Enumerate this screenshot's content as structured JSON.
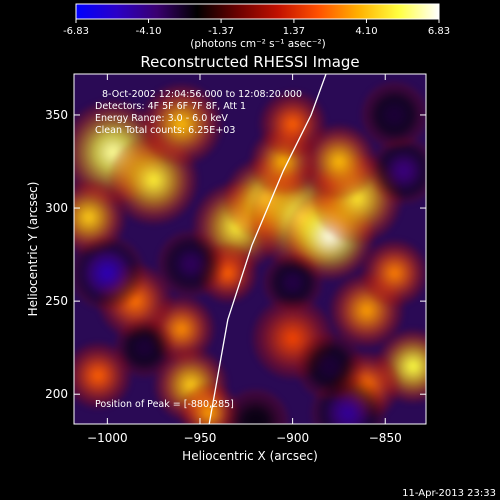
{
  "colorbar": {
    "ticks": [
      "-6.83",
      "-4.10",
      "-1.37",
      "1.37",
      "4.10",
      "6.83"
    ],
    "tick_values": [
      -6.83,
      -4.1,
      -1.37,
      1.37,
      4.1,
      6.83
    ],
    "unit_label": "(photons cm⁻² s⁻¹ asec⁻²)",
    "stops": [
      "#0000ff",
      "#2a00c8",
      "#3a0070",
      "#000000",
      "#6a0000",
      "#c01000",
      "#ff5000",
      "#ffb000",
      "#ffff40",
      "#ffffff"
    ]
  },
  "chart_data": {
    "type": "heatmap",
    "title": "Reconstructed RHESSI Image",
    "xlabel": "Heliocentric X (arcsec)",
    "ylabel": "Heliocentric Y (arcsec)",
    "xlim": [
      -1018,
      -828
    ],
    "ylim": [
      184,
      372
    ],
    "xticks": [
      -1000,
      -950,
      -900,
      -850
    ],
    "yticks": [
      200,
      250,
      300,
      350
    ],
    "xtick_labels": [
      "−1000",
      "−950",
      "−900",
      "−850"
    ],
    "ytick_labels": [
      "200",
      "250",
      "300",
      "350"
    ],
    "annotations": [
      "8-Oct-2002 12:04:56.000 to 12:08:20.000",
      "Detectors: 4F 5F 6F 7F 8F, Att 1",
      "Energy Range: 3.0 - 6.0 keV",
      "Clean     Total counts: 6.25E+03"
    ],
    "pos_label": "Position of Peak = [-880,285]",
    "limb_points": [
      [
        -945,
        184
      ],
      [
        -935,
        240
      ],
      [
        -922,
        280
      ],
      [
        -905,
        320
      ],
      [
        -890,
        350
      ],
      [
        -882,
        372
      ]
    ],
    "sources": [
      {
        "x": -997,
        "y": 330,
        "v": 6.0,
        "s": 14
      },
      {
        "x": -975,
        "y": 315,
        "v": 5.0,
        "s": 12
      },
      {
        "x": -960,
        "y": 345,
        "v": 4.0,
        "s": 11
      },
      {
        "x": -1010,
        "y": 295,
        "v": 4.3,
        "s": 10
      },
      {
        "x": -930,
        "y": 290,
        "v": 5.0,
        "s": 12
      },
      {
        "x": -915,
        "y": 305,
        "v": 5.0,
        "s": 11
      },
      {
        "x": -895,
        "y": 295,
        "v": 5.5,
        "s": 14
      },
      {
        "x": -880,
        "y": 285,
        "v": 6.6,
        "s": 12
      },
      {
        "x": -865,
        "y": 305,
        "v": 4.8,
        "s": 12
      },
      {
        "x": -875,
        "y": 325,
        "v": 4.0,
        "s": 10
      },
      {
        "x": -905,
        "y": 325,
        "v": 3.8,
        "s": 9
      },
      {
        "x": -900,
        "y": 345,
        "v": 2.5,
        "s": 9
      },
      {
        "x": -960,
        "y": 235,
        "v": 3.2,
        "s": 9
      },
      {
        "x": -985,
        "y": 250,
        "v": 2.8,
        "s": 10
      },
      {
        "x": -955,
        "y": 205,
        "v": 4.3,
        "s": 10
      },
      {
        "x": -945,
        "y": 190,
        "v": 3.5,
        "s": 8
      },
      {
        "x": -1005,
        "y": 210,
        "v": 2.5,
        "s": 9
      },
      {
        "x": -935,
        "y": 265,
        "v": 2.5,
        "s": 8
      },
      {
        "x": -860,
        "y": 245,
        "v": 3.5,
        "s": 10
      },
      {
        "x": -845,
        "y": 265,
        "v": 3.0,
        "s": 9
      },
      {
        "x": -835,
        "y": 215,
        "v": 5.3,
        "s": 10
      },
      {
        "x": -860,
        "y": 205,
        "v": 2.8,
        "s": 9
      },
      {
        "x": -900,
        "y": 230,
        "v": 2.0,
        "s": 11
      },
      {
        "x": -1000,
        "y": 265,
        "v": -5.0,
        "s": 10
      },
      {
        "x": -955,
        "y": 270,
        "v": -3.5,
        "s": 9
      },
      {
        "x": -870,
        "y": 190,
        "v": -4.5,
        "s": 10
      },
      {
        "x": -880,
        "y": 215,
        "v": -3.0,
        "s": 9
      },
      {
        "x": -840,
        "y": 320,
        "v": -4.0,
        "s": 9
      },
      {
        "x": -900,
        "y": 260,
        "v": -3.2,
        "s": 8
      },
      {
        "x": -920,
        "y": 185,
        "v": -2.5,
        "s": 9
      },
      {
        "x": -980,
        "y": 225,
        "v": -3.0,
        "s": 8
      },
      {
        "x": -845,
        "y": 350,
        "v": -3.0,
        "s": 9
      }
    ]
  },
  "footer": {
    "datestamp": "11-Apr-2013 23:33"
  }
}
